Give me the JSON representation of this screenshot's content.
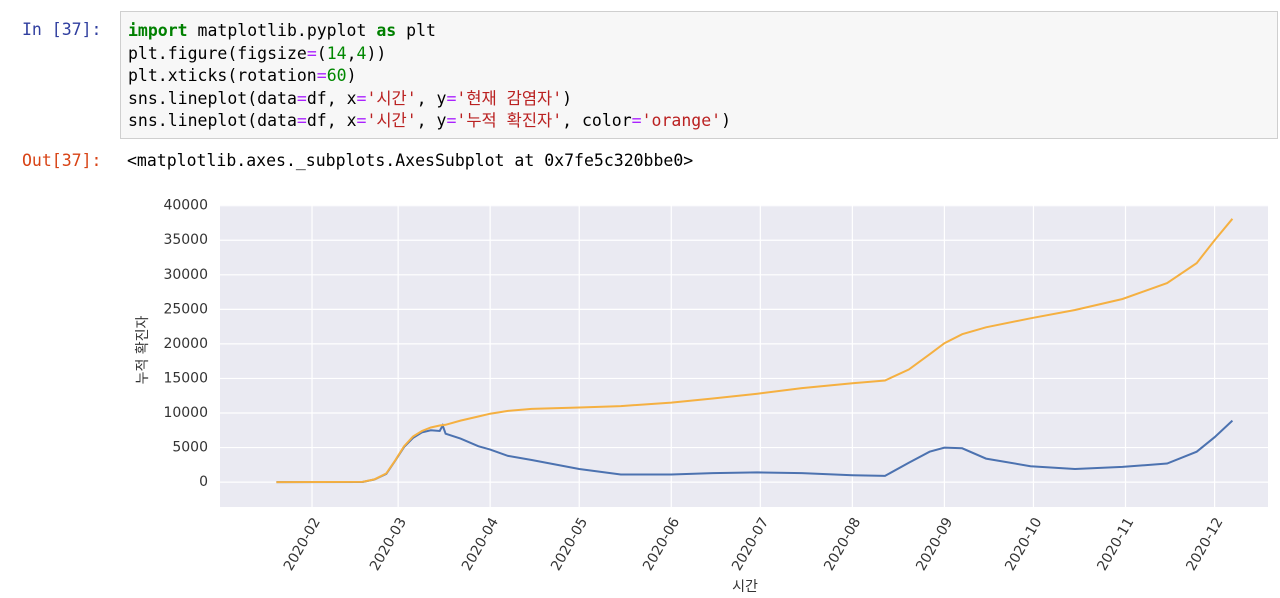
{
  "cell": {
    "in_prompt": "In [37]:",
    "code_lines": [
      [
        "import",
        " matplotlib.pyplot ",
        "as",
        " plt"
      ],
      [
        "plt.figure(figsize",
        "=",
        "(",
        "14",
        ",",
        "4",
        "))"
      ],
      [
        "plt.xticks(rotation",
        "=",
        "60",
        ")"
      ],
      [
        "sns.lineplot(data",
        "=",
        "df, x",
        "=",
        "'시간'",
        ", y",
        "=",
        "'현재 감염자'",
        ")"
      ],
      [
        "sns.lineplot(data",
        "=",
        "df, x",
        "=",
        "'시간'",
        ", y",
        "=",
        "'누적 확진자'",
        ", color",
        "=",
        "'orange'",
        ")"
      ]
    ],
    "out_prompt": "Out[37]:",
    "output": "<matplotlib.axes._subplots.AxesSubplot at 0x7fe5c320bbe0>"
  },
  "chart_data": {
    "type": "line",
    "xlabel": "시간",
    "ylabel": "누적 확진자",
    "x": [
      "2020-01-20",
      "2020-02-18",
      "2020-02-22",
      "2020-02-26",
      "2020-02-29",
      "2020-03-03",
      "2020-03-06",
      "2020-03-09",
      "2020-03-12",
      "2020-03-15",
      "2020-03-16",
      "2020-03-17",
      "2020-03-22",
      "2020-03-28",
      "2020-04-01",
      "2020-04-07",
      "2020-04-15",
      "2020-05-01",
      "2020-05-15",
      "2020-06-01",
      "2020-06-15",
      "2020-06-30",
      "2020-07-15",
      "2020-08-01",
      "2020-08-12",
      "2020-08-20",
      "2020-08-27",
      "2020-09-01",
      "2020-09-07",
      "2020-09-15",
      "2020-09-30",
      "2020-10-15",
      "2020-10-31",
      "2020-11-15",
      "2020-11-25",
      "2020-12-01",
      "2020-12-07"
    ],
    "series": [
      {
        "color": "#4c72b0",
        "values": [
          1,
          20,
          380,
          1200,
          3100,
          5100,
          6400,
          7200,
          7500,
          7400,
          8200,
          7000,
          6300,
          5200,
          4700,
          3800,
          3200,
          1900,
          1100,
          1100,
          1300,
          1400,
          1300,
          1000,
          900,
          2800,
          4400,
          5000,
          4900,
          3400,
          2300,
          1900,
          2200,
          2700,
          4400,
          6500,
          8900
        ]
      },
      {
        "color": "#f5b041",
        "values": [
          1,
          31,
          400,
          1260,
          3150,
          5200,
          6600,
          7400,
          7900,
          8200,
          8250,
          8300,
          8900,
          9500,
          9900,
          10300,
          10600,
          10800,
          11000,
          11500,
          12100,
          12800,
          13600,
          14300,
          14700,
          16300,
          18500,
          20100,
          21400,
          22400,
          23700,
          24900,
          26500,
          28800,
          31700,
          35000,
          38100
        ]
      }
    ],
    "xlim": [
      "2020-01-01",
      "2020-12-19"
    ],
    "xticks": [
      "2020-02",
      "2020-03",
      "2020-04",
      "2020-05",
      "2020-06",
      "2020-07",
      "2020-08",
      "2020-09",
      "2020-10",
      "2020-11",
      "2020-12"
    ],
    "ylim": [
      -3600,
      40100
    ],
    "yticks": [
      0,
      5000,
      10000,
      15000,
      20000,
      25000,
      30000,
      35000,
      40000
    ],
    "grid": true
  }
}
